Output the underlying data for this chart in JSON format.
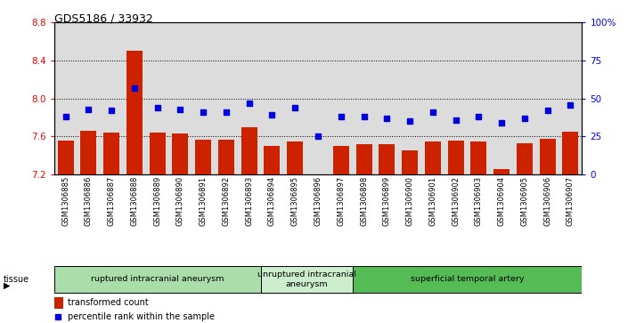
{
  "title": "GDS5186 / 33932",
  "samples": [
    "GSM1306885",
    "GSM1306886",
    "GSM1306887",
    "GSM1306888",
    "GSM1306889",
    "GSM1306890",
    "GSM1306891",
    "GSM1306892",
    "GSM1306893",
    "GSM1306894",
    "GSM1306895",
    "GSM1306896",
    "GSM1306897",
    "GSM1306898",
    "GSM1306899",
    "GSM1306900",
    "GSM1306901",
    "GSM1306902",
    "GSM1306903",
    "GSM1306904",
    "GSM1306905",
    "GSM1306906",
    "GSM1306907"
  ],
  "bar_values": [
    7.56,
    7.66,
    7.64,
    8.5,
    7.64,
    7.63,
    7.57,
    7.57,
    7.7,
    7.5,
    7.55,
    7.2,
    7.5,
    7.52,
    7.52,
    7.45,
    7.55,
    7.56,
    7.55,
    7.26,
    7.53,
    7.58,
    7.65
  ],
  "percentile_values": [
    38,
    43,
    42,
    57,
    44,
    43,
    41,
    41,
    47,
    39,
    44,
    25,
    38,
    38,
    37,
    35,
    41,
    36,
    38,
    34,
    37,
    42,
    46
  ],
  "bar_color": "#CC2200",
  "dot_color": "#0000DD",
  "ylim_left": [
    7.2,
    8.8
  ],
  "ylim_right": [
    0,
    100
  ],
  "yticks_left": [
    7.2,
    7.6,
    8.0,
    8.4,
    8.8
  ],
  "yticks_right": [
    0,
    25,
    50,
    75,
    100
  ],
  "ytick_labels_right": [
    "0",
    "25",
    "50",
    "75",
    "100%"
  ],
  "groups": [
    {
      "label": "ruptured intracranial aneurysm",
      "start": 0,
      "end": 9,
      "color": "#AADDAA"
    },
    {
      "label": "unruptured intracranial\naneurysm",
      "start": 9,
      "end": 13,
      "color": "#BBEEAA"
    },
    {
      "label": "superficial temporal artery",
      "start": 13,
      "end": 23,
      "color": "#55BB55"
    }
  ],
  "legend_bar_label": "transformed count",
  "legend_dot_label": "percentile rank within the sample",
  "plot_bg_color": "#DCDCDC",
  "bar_bottom": 7.2,
  "bar_width": 0.7
}
